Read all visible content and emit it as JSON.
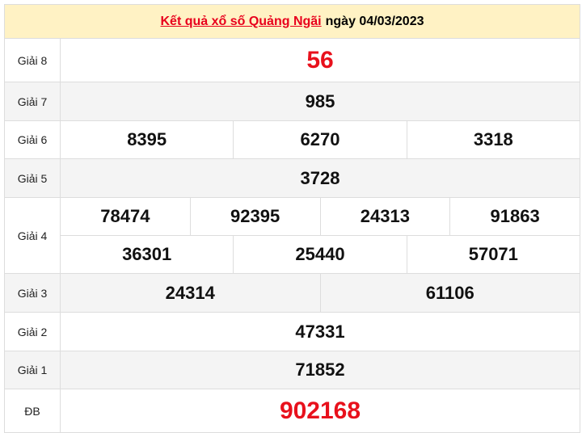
{
  "header": {
    "link_text": "Kết quả xổ số Quảng Ngãi",
    "date_text": "ngày 04/03/2023",
    "accent": "#e8001c"
  },
  "prizes": [
    {
      "label": "Giải 8",
      "lines": [
        [
          "56"
        ]
      ],
      "highlight": true
    },
    {
      "label": "Giải 7",
      "lines": [
        [
          "985"
        ]
      ]
    },
    {
      "label": "Giải 6",
      "lines": [
        [
          "8395",
          "6270",
          "3318"
        ]
      ]
    },
    {
      "label": "Giải 5",
      "lines": [
        [
          "3728"
        ]
      ]
    },
    {
      "label": "Giải 4",
      "lines": [
        [
          "78474",
          "92395",
          "24313",
          "91863"
        ],
        [
          "36301",
          "25440",
          "57071"
        ]
      ]
    },
    {
      "label": "Giải 3",
      "lines": [
        [
          "24314",
          "61106"
        ]
      ]
    },
    {
      "label": "Giải 2",
      "lines": [
        [
          "47331"
        ]
      ]
    },
    {
      "label": "Giải 1",
      "lines": [
        [
          "71852"
        ]
      ]
    },
    {
      "label": "ĐB",
      "lines": [
        [
          "902168"
        ]
      ],
      "highlight": true
    }
  ]
}
